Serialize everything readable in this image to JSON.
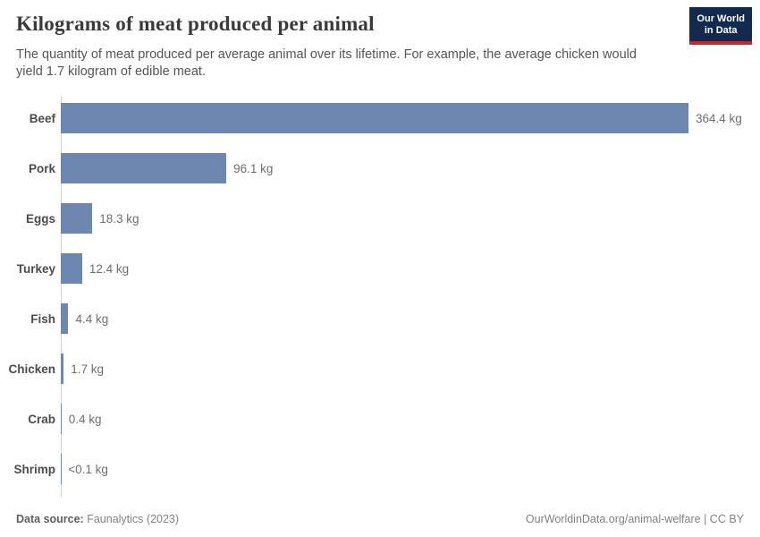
{
  "header": {
    "title": "Kilograms of meat produced per animal",
    "subtitle": "The quantity of meat produced per average animal over its lifetime. For example, the average chicken would yield 1.7 kilogram of edible meat.",
    "logo": {
      "line1": "Our World",
      "line2": "in Data",
      "bg_color": "#122a4e",
      "accent_color": "#c2282d"
    }
  },
  "chart_data": {
    "type": "bar",
    "orientation": "horizontal",
    "title": "Kilograms of meat produced per animal",
    "categories": [
      "Beef",
      "Pork",
      "Eggs",
      "Turkey",
      "Fish",
      "Chicken",
      "Crab",
      "Shrimp"
    ],
    "values": [
      364.4,
      96.1,
      18.3,
      12.4,
      4.4,
      1.7,
      0.4,
      0.1
    ],
    "value_labels": [
      "364.4 kg",
      "96.1 kg",
      "18.3 kg",
      "12.4 kg",
      "4.4 kg",
      "1.7 kg",
      "0.4 kg",
      "<0.1 kg"
    ],
    "unit": "kg",
    "xlim": [
      0,
      364.4
    ],
    "bar_color": "#6d87b0",
    "grid": false,
    "legend": "none"
  },
  "footer": {
    "datasource_label": "Data source:",
    "datasource_value": " Faunalytics (2023)",
    "credit": "OurWorldinData.org/animal-welfare | CC BY"
  }
}
